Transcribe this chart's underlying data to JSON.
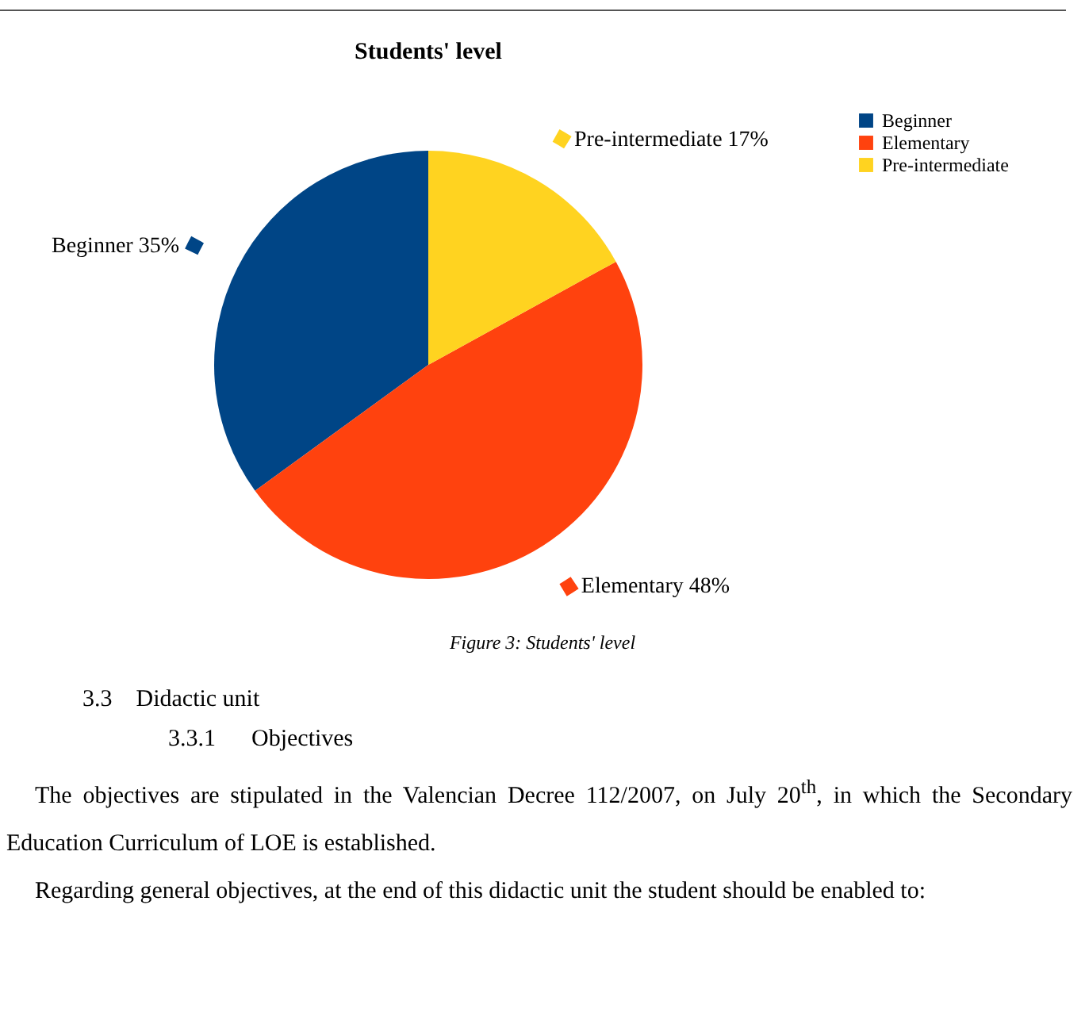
{
  "chart_data": {
    "type": "pie",
    "title": "Students' level",
    "categories": [
      "Beginner",
      "Elementary",
      "Pre-intermediate"
    ],
    "values": [
      35,
      48,
      17
    ],
    "colors": [
      "#004586",
      "#ff420e",
      "#ffd320"
    ],
    "value_labels": [
      "35%",
      "48%",
      "17%"
    ],
    "legend": "right",
    "annotations": [
      "Figure 3: Students' level",
      "3.3\tDidactic unit",
      "3.3.1\tObjectives",
      "The objectives are stipulated in the Valencian Decree 112/2007, on July 20$^{th}$, in which the Secondary Education Curriculum of LOE is established.",
      "Regarding general objectives, at the end of this didactic unit the student should be enabled to:"
    ]
  }
}
